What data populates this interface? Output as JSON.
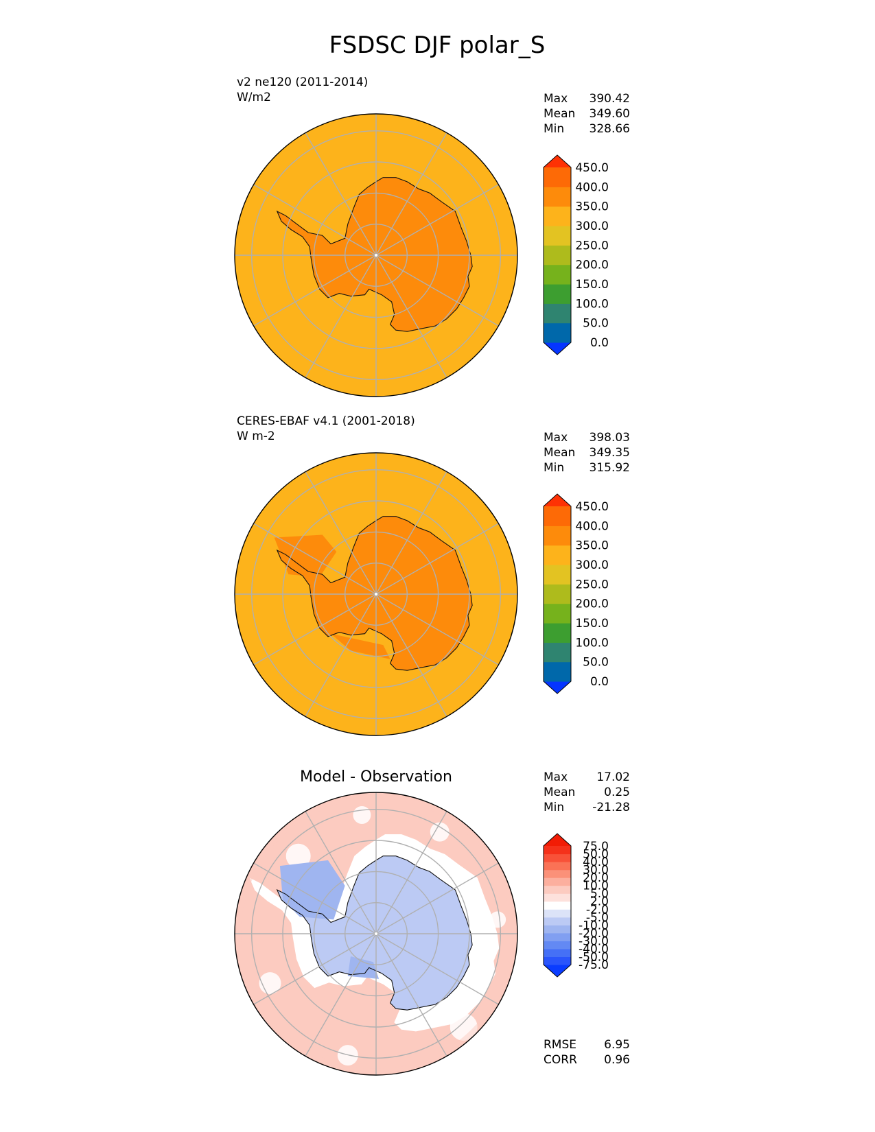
{
  "figure": {
    "title": "FSDSC DJF polar_S"
  },
  "chart_data": [
    {
      "type": "heatmap",
      "projection": "south-polar-stereographic",
      "title": "",
      "left_label": [
        "v2 ne120 (2011-2014)",
        "W/m2"
      ],
      "stats": [
        [
          "Max",
          "390.42"
        ],
        [
          "Mean",
          "349.60"
        ],
        [
          "Min",
          "328.66"
        ]
      ],
      "colorbar": {
        "ticks": [
          "0.0",
          "50.0",
          "100.0",
          "150.0",
          "200.0",
          "250.0",
          "300.0",
          "350.0",
          "400.0",
          "450.0"
        ],
        "levels": [
          0,
          50,
          100,
          150,
          200,
          250,
          300,
          350,
          400,
          450
        ],
        "extend": "both",
        "colors": [
          "#0535ff",
          "#0068aa",
          "#2f8470",
          "#3d9e30",
          "#76b21c",
          "#aebb1c",
          "#e3c322",
          "#fdb31b",
          "#fd8b0b",
          "#fd6a06",
          "#fe3204"
        ]
      },
      "field": {
        "ocean_value": 340,
        "ocean_value_north_edge": 370,
        "continent_value": 375,
        "ice_edge_value": 340
      }
    },
    {
      "type": "heatmap",
      "projection": "south-polar-stereographic",
      "title": "",
      "left_label": [
        "CERES-EBAF v4.1 (2001-2018)",
        "W m-2"
      ],
      "stats": [
        [
          "Max",
          "398.03"
        ],
        [
          "Mean",
          "349.35"
        ],
        [
          "Min",
          "315.92"
        ]
      ],
      "colorbar": {
        "ticks": [
          "0.0",
          "50.0",
          "100.0",
          "150.0",
          "200.0",
          "250.0",
          "300.0",
          "350.0",
          "400.0",
          "450.0"
        ],
        "levels": [
          0,
          50,
          100,
          150,
          200,
          250,
          300,
          350,
          400,
          450
        ],
        "extend": "both",
        "colors": [
          "#0535ff",
          "#0068aa",
          "#2f8470",
          "#3d9e30",
          "#76b21c",
          "#aebb1c",
          "#e3c322",
          "#fdb31b",
          "#fd8b0b",
          "#fd6a06",
          "#fe3204"
        ]
      },
      "field": {
        "ocean_value": 340,
        "continent_value": 375
      }
    },
    {
      "type": "heatmap",
      "projection": "south-polar-stereographic",
      "title": "Model - Observation",
      "left_label": [],
      "stats": [
        [
          "Max",
          "17.02"
        ],
        [
          "Mean",
          "0.25"
        ],
        [
          "Min",
          "-21.28"
        ]
      ],
      "extra_stats": [
        [
          "RMSE",
          "6.95"
        ],
        [
          "CORR",
          "0.96"
        ]
      ],
      "colorbar": {
        "ticks": [
          "-75.0",
          "-50.0",
          "-40.0",
          "-30.0",
          "-20.0",
          "-10.0",
          "-5.0",
          "-2.0",
          "2.0",
          "5.0",
          "10.0",
          "20.0",
          "30.0",
          "40.0",
          "50.0",
          "75.0"
        ],
        "levels": [
          -75,
          -50,
          -40,
          -30,
          -20,
          -10,
          -5,
          -2,
          2,
          5,
          10,
          20,
          30,
          40,
          50,
          75
        ],
        "extend": "both",
        "colors": [
          "#0a3cff",
          "#2a55fb",
          "#4570f6",
          "#6389f3",
          "#819ff1",
          "#9fb5f0",
          "#bccaf4",
          "#dce3f8",
          "#ffffff",
          "#fde1dc",
          "#fccbc0",
          "#fcaf9e",
          "#fb9179",
          "#fa7256",
          "#f85138",
          "#f5311a",
          "#f21c05"
        ]
      },
      "field": {
        "ocean_value": 6,
        "ice_ring_value": 0,
        "continent_value": -8,
        "peninsula_value": -15
      }
    }
  ]
}
